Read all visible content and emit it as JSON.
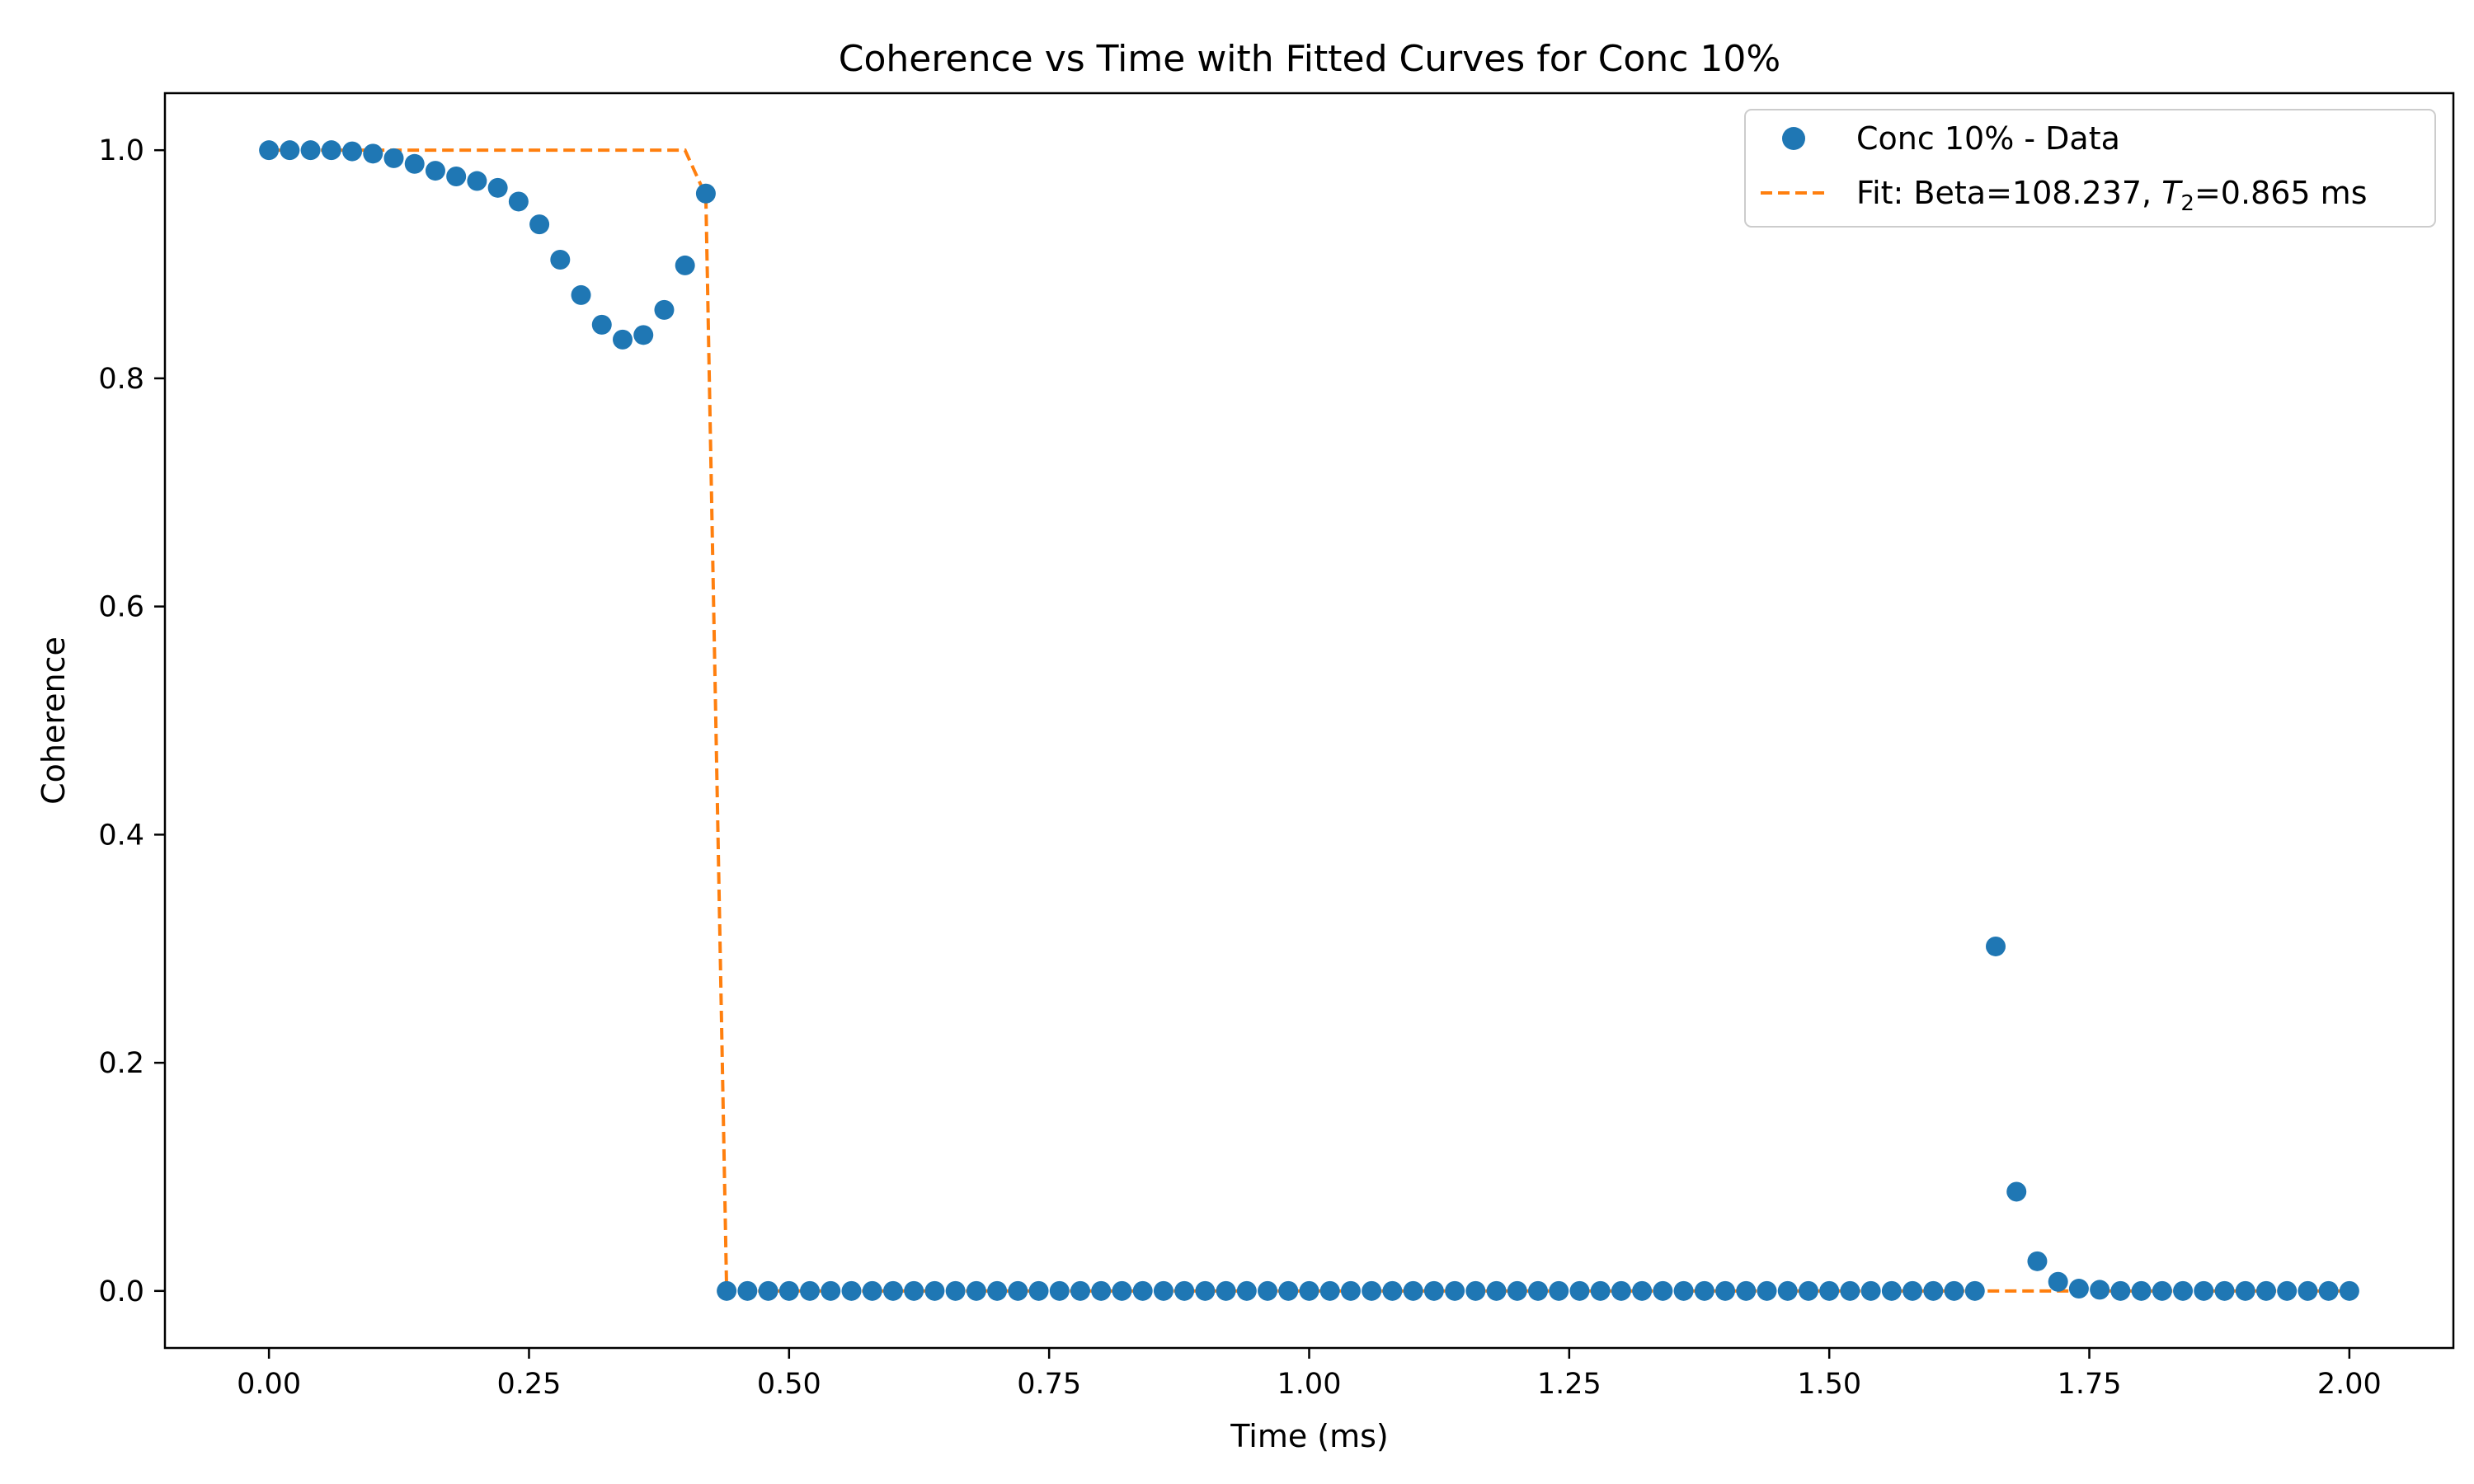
{
  "chart_data": {
    "type": "scatter",
    "title": "Coherence vs Time with Fitted Curves for Conc 10%",
    "xlabel": "Time (ms)",
    "ylabel": "Coherence",
    "xlim": [
      -0.1,
      2.1
    ],
    "ylim": [
      -0.05,
      1.05
    ],
    "x_ticks": [
      0.0,
      0.25,
      0.5,
      0.75,
      1.0,
      1.25,
      1.5,
      1.75,
      2.0
    ],
    "x_tick_labels": [
      "0.00",
      "0.25",
      "0.50",
      "0.75",
      "1.00",
      "1.25",
      "1.50",
      "1.75",
      "2.00"
    ],
    "y_ticks": [
      0.0,
      0.2,
      0.4,
      0.6,
      0.8,
      1.0
    ],
    "y_tick_labels": [
      "0.0",
      "0.2",
      "0.4",
      "0.6",
      "0.8",
      "1.0"
    ],
    "grid": false,
    "legend_position": "top-right",
    "series": [
      {
        "name": "Conc 10% - Data",
        "kind": "scatter",
        "color": "#1f77b4",
        "x": [
          0.0,
          0.02,
          0.04,
          0.06,
          0.08,
          0.1,
          0.12,
          0.14,
          0.16,
          0.18,
          0.2,
          0.22,
          0.24,
          0.26,
          0.28,
          0.3,
          0.32,
          0.34,
          0.36,
          0.38,
          0.4,
          0.42,
          0.44,
          0.46,
          0.48,
          0.5,
          0.52,
          0.54,
          0.56,
          0.58,
          0.6,
          0.62,
          0.64,
          0.66,
          0.68,
          0.7,
          0.72,
          0.74,
          0.76,
          0.78,
          0.8,
          0.82,
          0.84,
          0.86,
          0.88,
          0.9,
          0.92,
          0.94,
          0.96,
          0.98,
          1.0,
          1.02,
          1.04,
          1.06,
          1.08,
          1.1,
          1.12,
          1.14,
          1.16,
          1.18,
          1.2,
          1.22,
          1.24,
          1.26,
          1.28,
          1.3,
          1.32,
          1.34,
          1.36,
          1.38,
          1.4,
          1.42,
          1.44,
          1.46,
          1.48,
          1.5,
          1.52,
          1.54,
          1.56,
          1.58,
          1.6,
          1.62,
          1.64,
          1.66,
          1.68,
          1.7,
          1.72,
          1.74,
          1.76,
          1.78,
          1.8,
          1.82,
          1.84,
          1.86,
          1.88,
          1.9,
          1.92,
          1.94,
          1.96,
          1.98,
          2.0
        ],
        "y": [
          1.0,
          1.0,
          1.0,
          1.0,
          0.999,
          0.997,
          0.993,
          0.988,
          0.982,
          0.977,
          0.973,
          0.967,
          0.955,
          0.935,
          0.904,
          0.873,
          0.847,
          0.834,
          0.838,
          0.86,
          0.899,
          0.962,
          0,
          0,
          0,
          0,
          0,
          0,
          0,
          0,
          0,
          0,
          0,
          0,
          0,
          0,
          0,
          0,
          0,
          0,
          0,
          0,
          0,
          0,
          0,
          0,
          0,
          0,
          0,
          0,
          0,
          0,
          0,
          0,
          0,
          0,
          0,
          0,
          0,
          0,
          0,
          0,
          0,
          0,
          0,
          0,
          0,
          0,
          0,
          0,
          0,
          0,
          0,
          0,
          0,
          0,
          0,
          0,
          0,
          0,
          0,
          0,
          0,
          0.302,
          0.087,
          0.026,
          0.008,
          0.002,
          0.001,
          0,
          0,
          0,
          0,
          0,
          0,
          0,
          0,
          0,
          0,
          0,
          0
        ]
      },
      {
        "name": "Fit: Beta=108.237, T₂=0.865 ms",
        "name_prefix": "Fit: Beta=108.237, ",
        "name_T": "T",
        "name_sub": "2",
        "name_suffix": "=0.865 ms",
        "kind": "dashed-line",
        "color": "#ff7f0e",
        "x": [
          0.0,
          0.02,
          0.04,
          0.06,
          0.08,
          0.1,
          0.12,
          0.14,
          0.16,
          0.18,
          0.2,
          0.22,
          0.24,
          0.26,
          0.28,
          0.3,
          0.32,
          0.34,
          0.36,
          0.38,
          0.4,
          0.42,
          0.44,
          0.46,
          0.48,
          0.5,
          0.6,
          0.7,
          0.8,
          0.9,
          1.0,
          1.1,
          1.2,
          1.3,
          1.4,
          1.5,
          1.6,
          1.7,
          1.8,
          1.9,
          2.0
        ],
        "y": [
          1,
          1,
          1,
          1,
          1,
          1,
          1,
          1,
          1,
          1,
          1,
          1,
          1,
          1,
          1,
          1,
          1,
          1,
          1,
          1,
          1,
          0.96,
          0,
          0,
          0,
          0,
          0,
          0,
          0,
          0,
          0,
          0,
          0,
          0,
          0,
          0,
          0,
          0,
          0,
          0,
          0
        ]
      }
    ]
  }
}
